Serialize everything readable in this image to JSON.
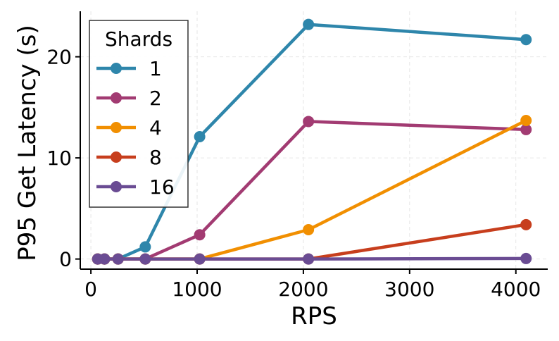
{
  "chart_data": {
    "type": "line",
    "title": "",
    "xlabel": "RPS",
    "ylabel": "P95 Get Latency (s)",
    "xlim": [
      -100,
      4300
    ],
    "ylim": [
      -1,
      24.5
    ],
    "x_ticks": [
      0,
      1000,
      2000,
      3000,
      4000
    ],
    "y_ticks": [
      0,
      10,
      20
    ],
    "grid": true,
    "legend_title": "Shards",
    "legend_position": "top-left",
    "x": [
      64,
      128,
      256,
      512,
      1024,
      2048,
      4096
    ],
    "series": [
      {
        "name": "1",
        "color": "#2e86ab",
        "values": [
          0,
          0,
          0,
          1.2,
          12.1,
          23.2,
          21.7
        ]
      },
      {
        "name": "2",
        "color": "#a23b72",
        "values": [
          0,
          0,
          0,
          0,
          2.4,
          13.6,
          12.8
        ]
      },
      {
        "name": "4",
        "color": "#f18f01",
        "values": [
          0,
          0,
          0,
          0,
          0,
          2.9,
          13.7
        ]
      },
      {
        "name": "8",
        "color": "#c73e1d",
        "values": [
          0,
          0,
          0,
          0,
          0,
          0,
          3.4
        ]
      },
      {
        "name": "16",
        "color": "#6a4c93",
        "values": [
          0,
          0,
          0,
          0,
          0,
          0,
          0.05
        ]
      }
    ]
  }
}
